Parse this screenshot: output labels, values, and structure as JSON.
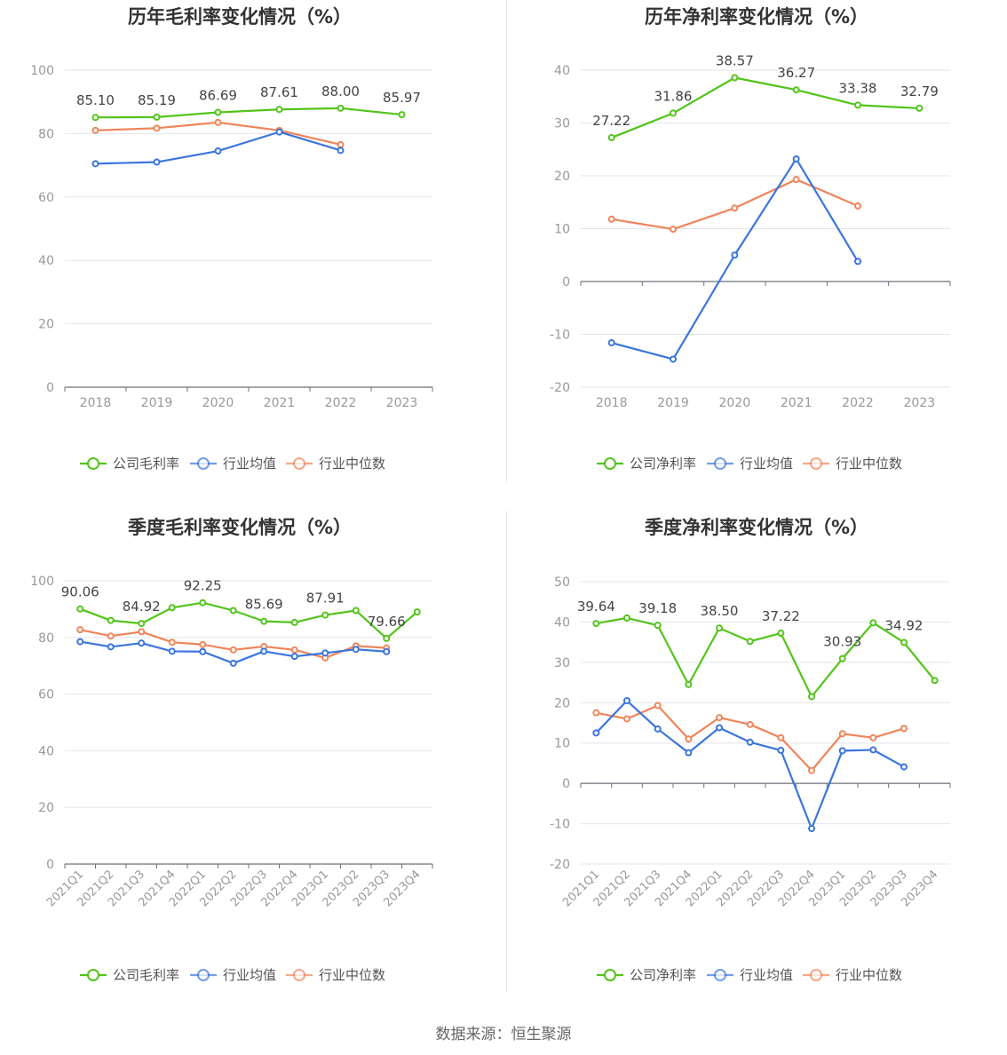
{
  "colors": {
    "company": "#52c41a",
    "avg": "#3a75dd",
    "median": "#f0845a",
    "grid": "#e3e6ee",
    "axis": "#6e7079",
    "tick_text": "#999999",
    "title": "#333333",
    "label": "#444444"
  },
  "source_text": "数据来源：恒生聚源",
  "chart_data": [
    {
      "type": "line",
      "title": "历年毛利率变化情况（%）",
      "categories": [
        "2018",
        "2019",
        "2020",
        "2021",
        "2022",
        "2023"
      ],
      "ylim": [
        0,
        100
      ],
      "yticks": [
        0,
        20,
        40,
        60,
        80,
        100
      ],
      "xlabel_rotated": false,
      "series": [
        {
          "name": "公司毛利率",
          "role": "company",
          "values": [
            85.1,
            85.19,
            86.69,
            87.61,
            88.0,
            85.97
          ],
          "labels": [
            "85.10",
            "85.19",
            "86.69",
            "87.61",
            "88.00",
            "85.97"
          ]
        },
        {
          "name": "行业均值",
          "role": "avg",
          "values": [
            70.5,
            71.0,
            74.5,
            80.5,
            74.7,
            null
          ]
        },
        {
          "name": "行业中位数",
          "role": "median",
          "values": [
            81.0,
            81.7,
            83.5,
            81.0,
            76.5,
            null
          ]
        }
      ],
      "legend": "bottom"
    },
    {
      "type": "line",
      "title": "历年净利率变化情况（%）",
      "categories": [
        "2018",
        "2019",
        "2020",
        "2021",
        "2022",
        "2023"
      ],
      "ylim": [
        -20,
        40
      ],
      "yticks": [
        -20,
        -10,
        0,
        10,
        20,
        30,
        40
      ],
      "xlabel_rotated": false,
      "series": [
        {
          "name": "公司净利率",
          "role": "company",
          "values": [
            27.22,
            31.86,
            38.57,
            36.27,
            33.38,
            32.79
          ],
          "labels": [
            "27.22",
            "31.86",
            "38.57",
            "36.27",
            "33.38",
            "32.79"
          ]
        },
        {
          "name": "行业均值",
          "role": "avg",
          "values": [
            -11.6,
            -14.7,
            5.0,
            23.2,
            3.8,
            null
          ]
        },
        {
          "name": "行业中位数",
          "role": "median",
          "values": [
            11.8,
            9.9,
            13.9,
            19.3,
            14.3,
            null
          ]
        }
      ],
      "legend": "bottom"
    },
    {
      "type": "line",
      "title": "季度毛利率变化情况（%）",
      "categories": [
        "2021Q1",
        "2021Q2",
        "2021Q3",
        "2021Q4",
        "2022Q1",
        "2022Q2",
        "2022Q3",
        "2022Q4",
        "2023Q1",
        "2023Q2",
        "2023Q3",
        "2023Q4"
      ],
      "ylim": [
        0,
        100
      ],
      "yticks": [
        0,
        20,
        40,
        60,
        80,
        100
      ],
      "xlabel_rotated": true,
      "series": [
        {
          "name": "公司毛利率",
          "role": "company",
          "values": [
            90.06,
            86.0,
            84.92,
            90.5,
            92.25,
            89.5,
            85.69,
            85.3,
            87.91,
            89.5,
            79.66,
            89.0
          ],
          "labels": [
            "90.06",
            "",
            "84.92",
            "",
            "92.25",
            "",
            "85.69",
            "",
            "87.91",
            "",
            "79.66",
            ""
          ]
        },
        {
          "name": "行业均值",
          "role": "avg",
          "values": [
            78.5,
            76.7,
            78.0,
            75.1,
            75.0,
            70.9,
            75.1,
            73.3,
            74.5,
            75.8,
            75.0,
            null
          ]
        },
        {
          "name": "行业中位数",
          "role": "median",
          "values": [
            82.7,
            80.5,
            82.0,
            78.3,
            77.5,
            75.6,
            76.8,
            75.6,
            72.8,
            77.0,
            76.3,
            null
          ]
        }
      ],
      "legend": "bottom"
    },
    {
      "type": "line",
      "title": "季度净利率变化情况（%）",
      "categories": [
        "2021Q1",
        "2021Q2",
        "2021Q3",
        "2021Q4",
        "2022Q1",
        "2022Q2",
        "2022Q3",
        "2022Q4",
        "2023Q1",
        "2023Q2",
        "2023Q3",
        "2023Q4"
      ],
      "ylim": [
        -20,
        50
      ],
      "yticks": [
        -20,
        -10,
        0,
        10,
        20,
        30,
        40,
        50
      ],
      "xlabel_rotated": true,
      "series": [
        {
          "name": "公司净利率",
          "role": "company",
          "values": [
            39.64,
            41.0,
            39.18,
            24.5,
            38.5,
            35.2,
            37.22,
            21.5,
            30.93,
            39.8,
            34.92,
            25.5
          ],
          "labels": [
            "39.64",
            "",
            "39.18",
            "",
            "38.50",
            "",
            "37.22",
            "",
            "30.93",
            "",
            "34.92",
            ""
          ]
        },
        {
          "name": "行业均值",
          "role": "avg",
          "values": [
            12.5,
            20.5,
            13.5,
            7.6,
            13.8,
            10.2,
            8.2,
            -11.2,
            8.1,
            8.3,
            4.1,
            null
          ]
        },
        {
          "name": "行业中位数",
          "role": "median",
          "values": [
            17.5,
            16.0,
            19.3,
            11.0,
            16.3,
            14.6,
            11.3,
            3.2,
            12.3,
            11.3,
            13.6,
            null
          ]
        }
      ],
      "legend": "bottom"
    }
  ]
}
